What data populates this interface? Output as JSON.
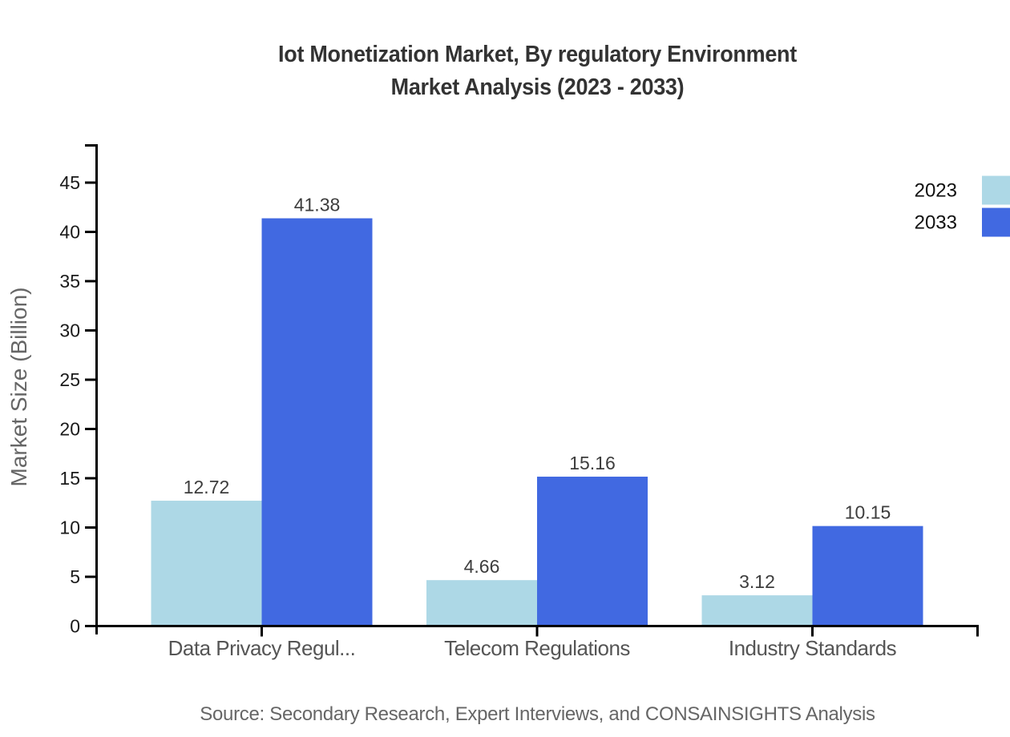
{
  "chart_data": {
    "type": "bar",
    "title": "Iot Monetization Market, By regulatory Environment",
    "subtitle": "Market Analysis (2023 - 2033)",
    "categories": [
      "Data Privacy Regul...",
      "Telecom Regulations",
      "Industry Standards"
    ],
    "series": [
      {
        "name": "2023",
        "color": "#ADD8E6",
        "values": [
          12.72,
          4.66,
          3.12
        ]
      },
      {
        "name": "2033",
        "color": "#4169E1",
        "values": [
          41.38,
          15.16,
          10.15
        ]
      }
    ],
    "xlabel": "",
    "ylabel": "Market Size (Billion)",
    "ylim": [
      0,
      48.9
    ],
    "yticks": [
      0,
      5,
      10,
      15,
      20,
      25,
      30,
      35,
      40,
      45
    ],
    "grid": false,
    "legend_position": "top-right",
    "value_labels": true,
    "value_label_decimals": 2,
    "source": "Source: Secondary Research, Expert Interviews, and CONSAINSIGHTS Analysis",
    "colors": {
      "axis": "#000000",
      "title_text": "#333333",
      "tick_text": "#1a1a1a",
      "category_text": "#555555",
      "value_text": "#3d3d3d",
      "muted_text": "#666666"
    }
  }
}
